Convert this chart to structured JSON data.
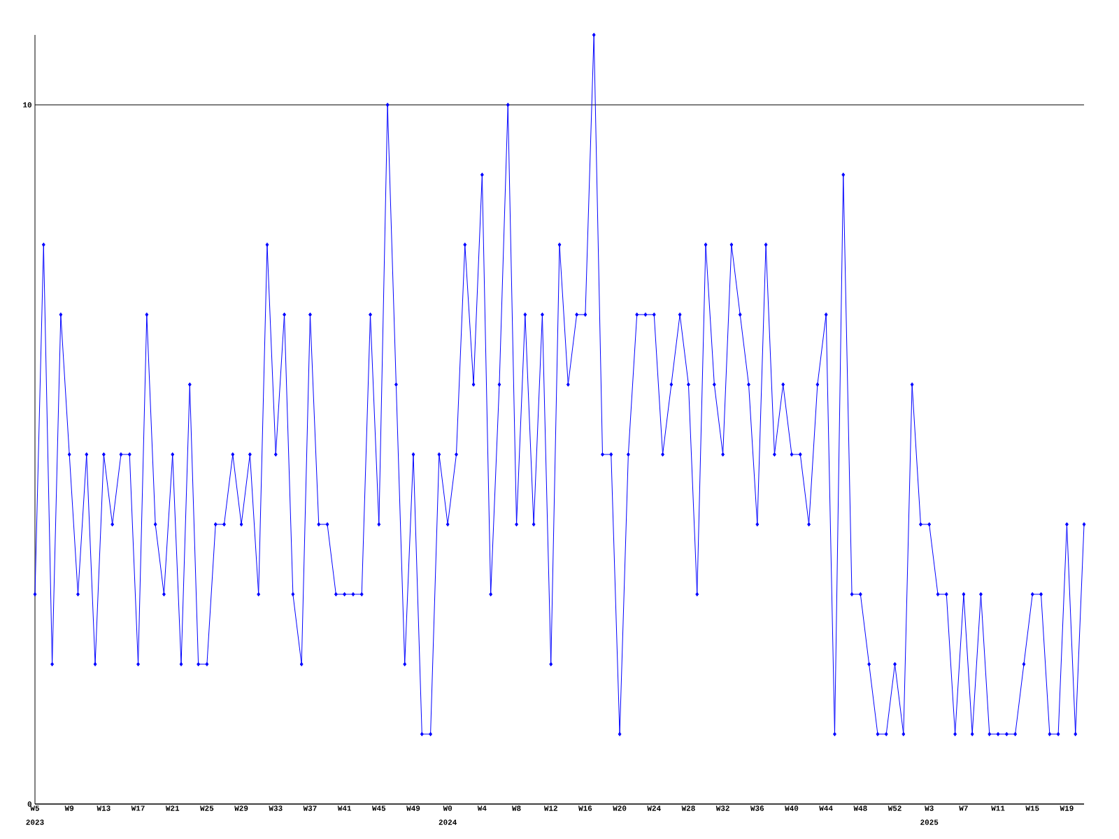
{
  "chart_data": {
    "type": "line",
    "categories": [
      "W5",
      null,
      null,
      null,
      "W9",
      null,
      null,
      null,
      "W13",
      null,
      null,
      null,
      "W17",
      null,
      null,
      null,
      "W21",
      null,
      null,
      null,
      "W25",
      null,
      null,
      null,
      "W29",
      null,
      null,
      null,
      "W33",
      null,
      null,
      null,
      "W37",
      null,
      null,
      null,
      "W41",
      null,
      null,
      null,
      "W45",
      null,
      null,
      null,
      "W49",
      null,
      null,
      null,
      "W0",
      null,
      null,
      null,
      "W4",
      null,
      null,
      null,
      "W8",
      null,
      null,
      null,
      "W12",
      null,
      null,
      null,
      "W16",
      null,
      null,
      null,
      "W20",
      null,
      null,
      null,
      "W24",
      null,
      null,
      null,
      "W28",
      null,
      null,
      null,
      "W32",
      null,
      null,
      null,
      "W36",
      null,
      null,
      null,
      "W40",
      null,
      null,
      null,
      "W44",
      null,
      null,
      null,
      "W48",
      null,
      null,
      null,
      "W52",
      null,
      null,
      null,
      "W3",
      null,
      null,
      null,
      "W7",
      null,
      null,
      null,
      "W11",
      null,
      null,
      null,
      "W15",
      null,
      null,
      null,
      "W19",
      null,
      null
    ],
    "values": [
      3,
      8,
      2,
      7,
      5,
      3,
      5,
      2,
      5,
      4,
      5,
      5,
      2,
      7,
      4,
      3,
      5,
      2,
      6,
      2,
      2,
      4,
      4,
      5,
      4,
      5,
      3,
      8,
      5,
      7,
      3,
      2,
      7,
      4,
      4,
      3,
      3,
      3,
      3,
      7,
      4,
      10,
      6,
      2,
      5,
      1,
      1,
      5,
      4,
      5,
      8,
      6,
      9,
      3,
      6,
      10,
      4,
      7,
      4,
      7,
      2,
      8,
      6,
      7,
      7,
      11,
      5,
      5,
      1,
      5,
      7,
      7,
      7,
      5,
      6,
      7,
      6,
      3,
      8,
      6,
      5,
      8,
      7,
      6,
      4,
      8,
      5,
      6,
      5,
      5,
      4,
      6,
      7,
      1,
      9,
      3,
      3,
      2,
      1,
      1,
      2,
      1,
      6,
      4,
      4,
      3,
      3,
      1,
      3,
      1,
      3,
      1,
      1,
      1,
      1,
      2,
      3,
      3,
      1,
      1,
      4,
      1,
      4
    ],
    "color": "#0000ff",
    "ylim": [
      0,
      11
    ],
    "yticks": [
      0,
      10
    ],
    "grid": "y",
    "marker": "diamond",
    "annotations": [
      "2023",
      "2024",
      "2025"
    ]
  }
}
